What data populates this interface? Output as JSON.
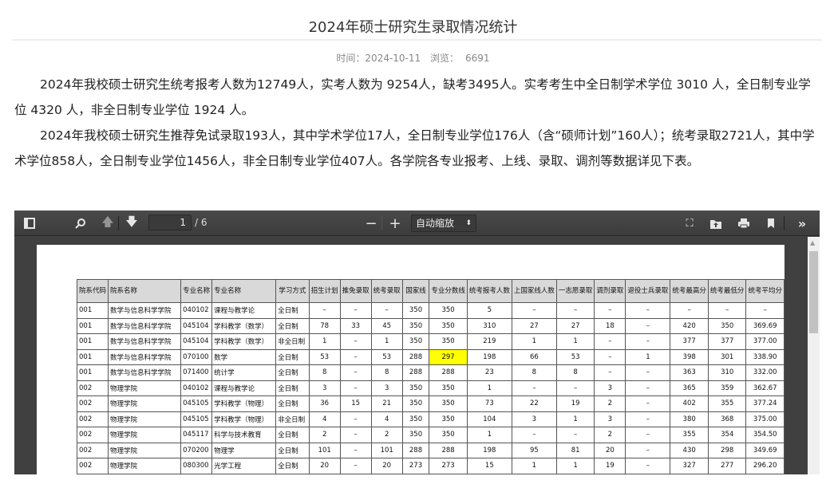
{
  "article": {
    "title": "2024年硕士研究生录取情况统计",
    "time_label": "时间：2024-10-11",
    "views_label": "浏览：",
    "views": "6691",
    "paragraphs": [
      "2024年我校硕士研究生统考报考人数为12749人，实考人数为 9254人，缺考3495人。实考考生中全日制学术学位 3010 人，全日制专业学位 4320 人，非全日制专业学位 1924 人。",
      "2024年我校硕士研究生推荐免试录取193人，其中学术学位17人，全日制专业学位176人（含“硕师计划”160人）；统考录取2721人，其中学术学位858人，全日制专业学位1456人，非全日制专业学位407人。各学院各专业报考、上线、录取、调剂等数据详见下表。"
    ]
  },
  "viewer": {
    "page_current": "1",
    "page_total": "/ 6",
    "zoom_option": "自动缩放",
    "icons": [
      "sidebar-toggle-icon",
      "search-icon",
      "arrow-up-icon",
      "arrow-down-icon",
      "minus-icon",
      "plus-icon",
      "fullscreen-icon",
      "open-file-icon",
      "print-icon",
      "bookmark-icon",
      "double-chevron-right-icon"
    ],
    "highlight_color": "#ffff00"
  },
  "table": {
    "headers": [
      "院系代码",
      "院系名称",
      "专业名称",
      "专业名称",
      "学习方式",
      "招生计划",
      "推免录取",
      "统考录取",
      "国家线",
      "专业分数线",
      "统考报考人数",
      "上国家线人数",
      "一志愿录取",
      "调剂录取",
      "退役士兵录取",
      "统考最高分",
      "统考最低分",
      "统考平均分"
    ],
    "rows": [
      [
        "001",
        "数学与信息科学学院",
        "040102",
        "课程与教学论",
        "全日制",
        "–",
        "–",
        "–",
        "350",
        "350",
        "5",
        "–",
        "–",
        "–",
        "–",
        "–",
        "–",
        "–"
      ],
      [
        "001",
        "数学与信息科学学院",
        "045104",
        "学科教学（数学）",
        "全日制",
        "78",
        "33",
        "45",
        "350",
        "350",
        "310",
        "27",
        "27",
        "18",
        "–",
        "420",
        "350",
        "369.69"
      ],
      [
        "001",
        "数学与信息科学学院",
        "045104",
        "学科教学（数学）",
        "非全日制",
        "1",
        "–",
        "1",
        "350",
        "350",
        "219",
        "1",
        "1",
        "–",
        "–",
        "377",
        "377",
        "377.00"
      ],
      [
        "001",
        "数学与信息科学学院",
        "070100",
        "数学",
        "全日制",
        "53",
        "–",
        "53",
        "288",
        "297",
        "198",
        "66",
        "53",
        "–",
        "1",
        "398",
        "301",
        "338.90"
      ],
      [
        "001",
        "数学与信息科学学院",
        "071400",
        "统计学",
        "全日制",
        "8",
        "–",
        "8",
        "288",
        "288",
        "23",
        "8",
        "8",
        "–",
        "–",
        "363",
        "310",
        "332.00"
      ],
      [
        "002",
        "物理学院",
        "040102",
        "课程与教学论",
        "全日制",
        "3",
        "–",
        "3",
        "350",
        "350",
        "1",
        "–",
        "–",
        "3",
        "–",
        "365",
        "359",
        "362.67"
      ],
      [
        "002",
        "物理学院",
        "045105",
        "学科教学（物理）",
        "全日制",
        "36",
        "15",
        "21",
        "350",
        "350",
        "73",
        "22",
        "19",
        "2",
        "–",
        "402",
        "355",
        "377.24"
      ],
      [
        "002",
        "物理学院",
        "045105",
        "学科教学（物理）",
        "非全日制",
        "4",
        "–",
        "4",
        "350",
        "350",
        "104",
        "3",
        "1",
        "3",
        "–",
        "380",
        "368",
        "375.00"
      ],
      [
        "002",
        "物理学院",
        "045117",
        "科学与技术教育",
        "全日制",
        "2",
        "–",
        "2",
        "350",
        "350",
        "1",
        "–",
        "–",
        "2",
        "–",
        "355",
        "354",
        "354.50"
      ],
      [
        "002",
        "物理学院",
        "070200",
        "物理学",
        "全日制",
        "101",
        "–",
        "101",
        "288",
        "288",
        "198",
        "95",
        "81",
        "20",
        "–",
        "430",
        "298",
        "349.69"
      ],
      [
        "002",
        "物理学院",
        "080300",
        "光学工程",
        "全日制",
        "20",
        "–",
        "20",
        "273",
        "273",
        "15",
        "1",
        "1",
        "19",
        "–",
        "327",
        "277",
        "296.20"
      ]
    ],
    "highlighted_cells": [
      [
        3,
        9
      ]
    ]
  }
}
